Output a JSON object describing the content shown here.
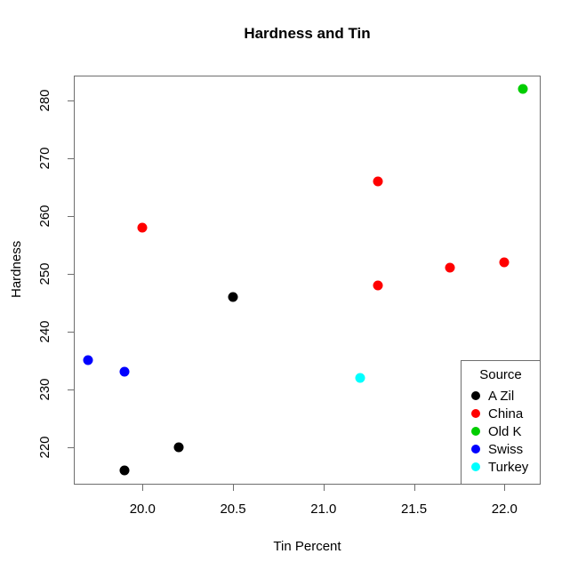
{
  "chart_data": {
    "type": "scatter",
    "title": "Hardness and Tin",
    "xlabel": "Tin Percent",
    "ylabel": "Hardness",
    "xlim": [
      19.62,
      22.2
    ],
    "ylim": [
      213.5,
      284.3
    ],
    "grid": false,
    "x_ticks": [
      {
        "value": 20.0,
        "label": "20.0"
      },
      {
        "value": 20.5,
        "label": "20.5"
      },
      {
        "value": 21.0,
        "label": "21.0"
      },
      {
        "value": 21.5,
        "label": "21.5"
      },
      {
        "value": 22.0,
        "label": "22.0"
      }
    ],
    "y_ticks": [
      {
        "value": 220,
        "label": "220"
      },
      {
        "value": 230,
        "label": "230"
      },
      {
        "value": 240,
        "label": "240"
      },
      {
        "value": 250,
        "label": "250"
      },
      {
        "value": 260,
        "label": "260"
      },
      {
        "value": 270,
        "label": "270"
      },
      {
        "value": 280,
        "label": "280"
      }
    ],
    "legend": {
      "title": "Source",
      "position": "bottomright"
    },
    "series": [
      {
        "name": "A Zil",
        "color": "#000000",
        "points": [
          [
            19.9,
            216
          ],
          [
            20.2,
            220
          ],
          [
            20.5,
            246
          ]
        ]
      },
      {
        "name": "China",
        "color": "#FF0000",
        "points": [
          [
            20.0,
            258
          ],
          [
            21.3,
            248
          ],
          [
            21.3,
            266
          ],
          [
            21.7,
            251
          ],
          [
            22.0,
            252
          ]
        ]
      },
      {
        "name": "Old K",
        "color": "#00CD00",
        "points": [
          [
            22.1,
            282
          ]
        ]
      },
      {
        "name": "Swiss",
        "color": "#0000FF",
        "points": [
          [
            19.7,
            235
          ],
          [
            19.9,
            233
          ]
        ]
      },
      {
        "name": "Turkey",
        "color": "#00FFFF",
        "points": [
          [
            21.2,
            232
          ]
        ]
      }
    ]
  }
}
